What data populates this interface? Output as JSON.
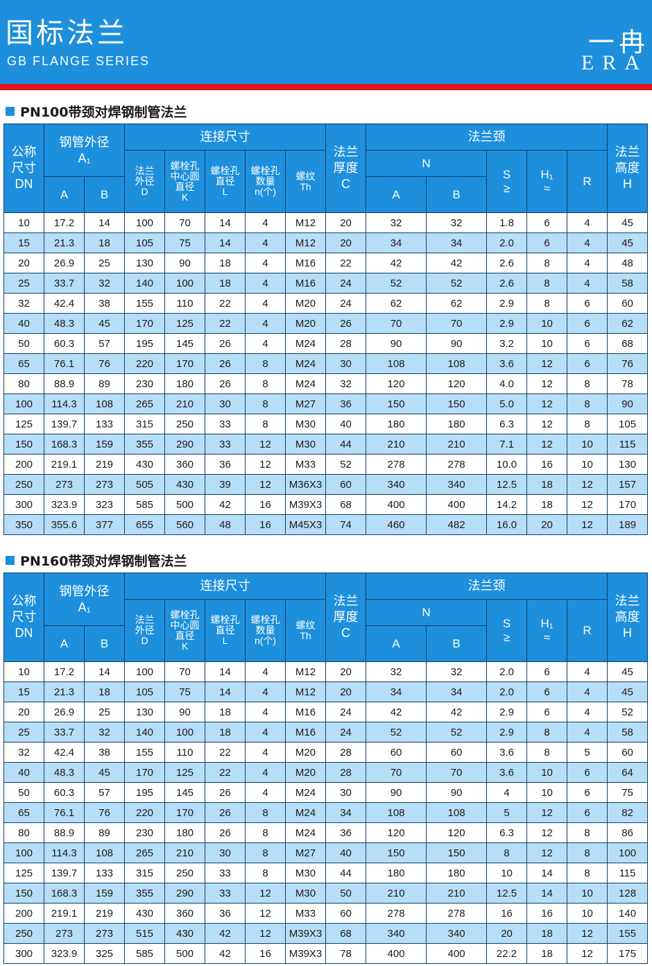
{
  "header": {
    "title_cn": "国标法兰",
    "title_en": "GB FLANGE SERIES",
    "logo_cn": "一冉",
    "logo_en": "ERA",
    "colors": {
      "banner": "#1d8fdc",
      "stripe": "#e6161e",
      "row_alt": "#b7def7"
    }
  },
  "columns": {
    "dn_l1": "公称",
    "dn_l2": "尺寸",
    "dn_l3": "DN",
    "pipe_l1": "钢管外径",
    "pipe_l2": "A₁",
    "pipe_a": "A",
    "pipe_b": "B",
    "conn": "连接尺寸",
    "d_l1": "法兰",
    "d_l2": "外径",
    "d_l3": "D",
    "k_l1": "螺栓孔",
    "k_l2": "中心圆",
    "k_l3": "直径",
    "k_l4": "K",
    "l_l1": "螺栓孔",
    "l_l2": "直径",
    "l_l3": "L",
    "n_l1": "螺栓孔",
    "n_l2": "数量",
    "n_l3": "n(个)",
    "th_l1": "螺纹",
    "th_l2": "Th",
    "c_l1": "法兰",
    "c_l2": "厚度",
    "c_l3": "C",
    "neck": "法兰颈",
    "n": "N",
    "na": "A",
    "nb": "B",
    "s_l1": "S",
    "s_l2": "≥",
    "h1_l1": "H₁",
    "h1_l2": "≈",
    "r": "R",
    "h_l1": "法兰",
    "h_l2": "高度",
    "h_l3": "H"
  },
  "tables": [
    {
      "title": "PN100带颈对焊钢制管法兰",
      "rows": [
        [
          "10",
          "17.2",
          "14",
          "100",
          "70",
          "14",
          "4",
          "M12",
          "20",
          "32",
          "32",
          "1.8",
          "6",
          "4",
          "45"
        ],
        [
          "15",
          "21.3",
          "18",
          "105",
          "75",
          "14",
          "4",
          "M12",
          "20",
          "34",
          "34",
          "2.0",
          "6",
          "4",
          "45"
        ],
        [
          "20",
          "26.9",
          "25",
          "130",
          "90",
          "18",
          "4",
          "M16",
          "22",
          "42",
          "42",
          "2.6",
          "8",
          "4",
          "48"
        ],
        [
          "25",
          "33.7",
          "32",
          "140",
          "100",
          "18",
          "4",
          "M16",
          "24",
          "52",
          "52",
          "2.6",
          "8",
          "4",
          "58"
        ],
        [
          "32",
          "42.4",
          "38",
          "155",
          "110",
          "22",
          "4",
          "M20",
          "24",
          "62",
          "62",
          "2.9",
          "8",
          "6",
          "60"
        ],
        [
          "40",
          "48.3",
          "45",
          "170",
          "125",
          "22",
          "4",
          "M20",
          "26",
          "70",
          "70",
          "2.9",
          "10",
          "6",
          "62"
        ],
        [
          "50",
          "60.3",
          "57",
          "195",
          "145",
          "26",
          "4",
          "M24",
          "28",
          "90",
          "90",
          "3.2",
          "10",
          "6",
          "68"
        ],
        [
          "65",
          "76.1",
          "76",
          "220",
          "170",
          "26",
          "8",
          "M24",
          "30",
          "108",
          "108",
          "3.6",
          "12",
          "6",
          "76"
        ],
        [
          "80",
          "88.9",
          "89",
          "230",
          "180",
          "26",
          "8",
          "M24",
          "32",
          "120",
          "120",
          "4.0",
          "12",
          "8",
          "78"
        ],
        [
          "100",
          "114.3",
          "108",
          "265",
          "210",
          "30",
          "8",
          "M27",
          "36",
          "150",
          "150",
          "5.0",
          "12",
          "8",
          "90"
        ],
        [
          "125",
          "139.7",
          "133",
          "315",
          "250",
          "33",
          "8",
          "M30",
          "40",
          "180",
          "180",
          "6.3",
          "12",
          "8",
          "105"
        ],
        [
          "150",
          "168.3",
          "159",
          "355",
          "290",
          "33",
          "12",
          "M30",
          "44",
          "210",
          "210",
          "7.1",
          "12",
          "10",
          "115"
        ],
        [
          "200",
          "219.1",
          "219",
          "430",
          "360",
          "36",
          "12",
          "M33",
          "52",
          "278",
          "278",
          "10.0",
          "16",
          "10",
          "130"
        ],
        [
          "250",
          "273",
          "273",
          "505",
          "430",
          "39",
          "12",
          "M36X3",
          "60",
          "340",
          "340",
          "12.5",
          "18",
          "12",
          "157"
        ],
        [
          "300",
          "323.9",
          "323",
          "585",
          "500",
          "42",
          "16",
          "M39X3",
          "68",
          "400",
          "400",
          "14.2",
          "18",
          "12",
          "170"
        ],
        [
          "350",
          "355.6",
          "377",
          "655",
          "560",
          "48",
          "16",
          "M45X3",
          "74",
          "460",
          "482",
          "16.0",
          "20",
          "12",
          "189"
        ]
      ]
    },
    {
      "title": "PN160带颈对焊钢制管法兰",
      "rows": [
        [
          "10",
          "17.2",
          "14",
          "100",
          "70",
          "14",
          "4",
          "M12",
          "20",
          "32",
          "32",
          "2.0",
          "6",
          "4",
          "45"
        ],
        [
          "15",
          "21.3",
          "18",
          "105",
          "75",
          "14",
          "4",
          "M12",
          "20",
          "34",
          "34",
          "2.0",
          "6",
          "4",
          "45"
        ],
        [
          "20",
          "26.9",
          "25",
          "130",
          "90",
          "18",
          "4",
          "M16",
          "24",
          "42",
          "42",
          "2.9",
          "6",
          "4",
          "52"
        ],
        [
          "25",
          "33.7",
          "32",
          "140",
          "100",
          "18",
          "4",
          "M16",
          "24",
          "52",
          "52",
          "2.9",
          "8",
          "4",
          "58"
        ],
        [
          "32",
          "42.4",
          "38",
          "155",
          "110",
          "22",
          "4",
          "M20",
          "28",
          "60",
          "60",
          "3.6",
          "8",
          "5",
          "60"
        ],
        [
          "40",
          "48.3",
          "45",
          "170",
          "125",
          "22",
          "4",
          "M20",
          "28",
          "70",
          "70",
          "3.6",
          "10",
          "6",
          "64"
        ],
        [
          "50",
          "60.3",
          "57",
          "195",
          "145",
          "26",
          "4",
          "M24",
          "30",
          "90",
          "90",
          "4",
          "10",
          "6",
          "75"
        ],
        [
          "65",
          "76.1",
          "76",
          "220",
          "170",
          "26",
          "8",
          "M24",
          "34",
          "108",
          "108",
          "5",
          "12",
          "6",
          "82"
        ],
        [
          "80",
          "88.9",
          "89",
          "230",
          "180",
          "26",
          "8",
          "M24",
          "36",
          "120",
          "120",
          "6.3",
          "12",
          "8",
          "86"
        ],
        [
          "100",
          "114.3",
          "108",
          "265",
          "210",
          "30",
          "8",
          "M27",
          "40",
          "150",
          "150",
          "8",
          "12",
          "8",
          "100"
        ],
        [
          "125",
          "139.7",
          "133",
          "315",
          "250",
          "33",
          "8",
          "M30",
          "44",
          "180",
          "180",
          "10",
          "14",
          "8",
          "115"
        ],
        [
          "150",
          "168.3",
          "159",
          "355",
          "290",
          "33",
          "12",
          "M30",
          "50",
          "210",
          "210",
          "12.5",
          "14",
          "10",
          "128"
        ],
        [
          "200",
          "219.1",
          "219",
          "430",
          "360",
          "36",
          "12",
          "M33",
          "60",
          "278",
          "278",
          "16",
          "16",
          "10",
          "140"
        ],
        [
          "250",
          "273",
          "273",
          "515",
          "430",
          "42",
          "12",
          "M39X3",
          "68",
          "340",
          "340",
          "20",
          "18",
          "12",
          "155"
        ],
        [
          "300",
          "323.9",
          "325",
          "585",
          "500",
          "42",
          "16",
          "M39X3",
          "78",
          "400",
          "400",
          "22.2",
          "18",
          "12",
          "175"
        ]
      ]
    }
  ]
}
